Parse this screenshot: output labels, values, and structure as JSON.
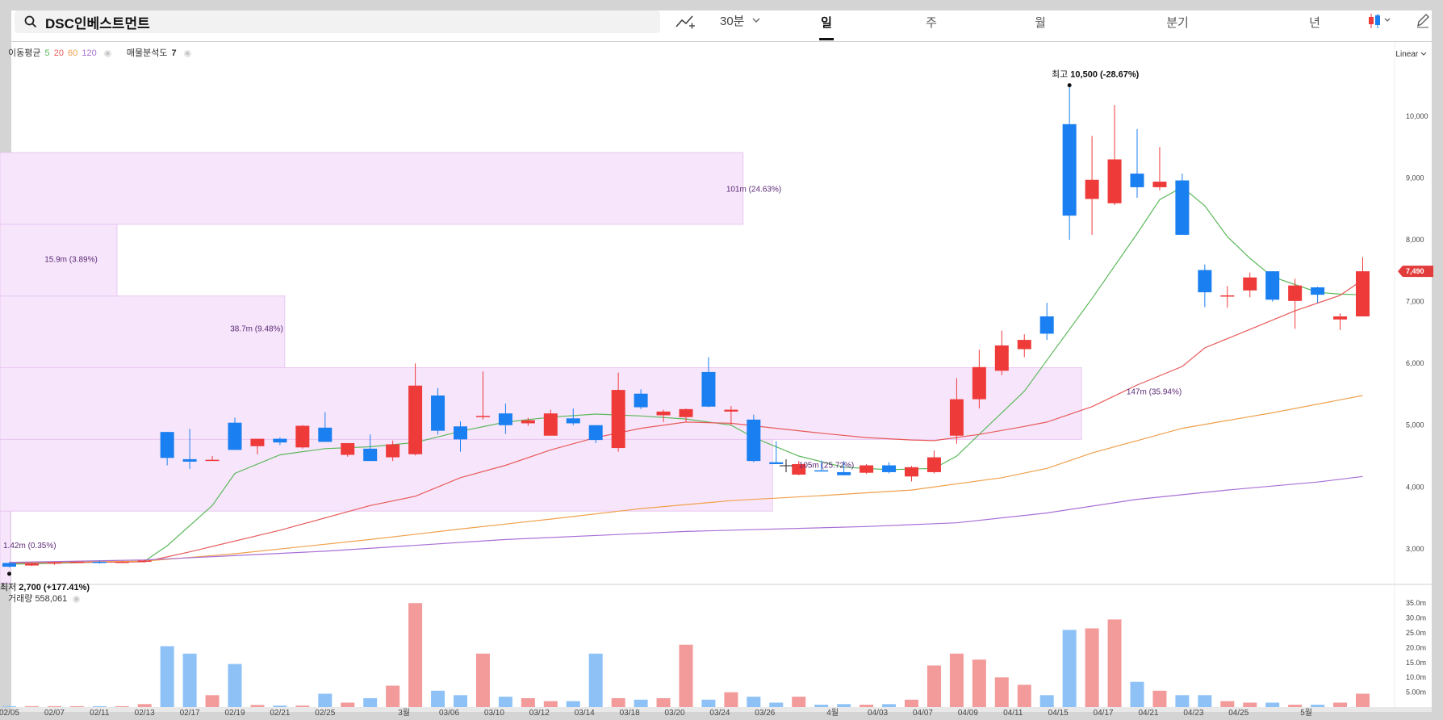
{
  "search": {
    "value": "DSC인베스트먼트"
  },
  "toolbar": {
    "interval_label": "30분",
    "periods": [
      "일",
      "주",
      "월",
      "분기",
      "년"
    ],
    "active_period": "일",
    "icons": [
      "search-icon",
      "drawing-tool-icon",
      "chevron-down-icon",
      "candle-chart-icon",
      "pencil-icon"
    ]
  },
  "legend": {
    "ma_label": "이동평균",
    "ma_periods": [
      "5",
      "20",
      "60",
      "120"
    ],
    "ma_colors": [
      "#5cb85c",
      "#e85a5a",
      "#f0a04b",
      "#a86fd6"
    ],
    "vp_label": "매물분석도",
    "vp_value": "7"
  },
  "volume_legend": {
    "label": "거래량",
    "value": "558,061"
  },
  "scale_label": "Linear",
  "annotations": {
    "high": "최고 10,500 (-28.67%)",
    "high_prefix": "최고",
    "high_value": "10,500 (-28.67%)",
    "low": "최저 2,700 (+177.41%)",
    "low_prefix": "최저",
    "low_value": "2,700 (+177.41%)",
    "last_price": "7,490"
  },
  "colors": {
    "up": "#ef3a3a",
    "down": "#1a7ff0",
    "up_vol": "#f39a9a",
    "down_vol": "#8ec2f7",
    "vp_fill": "#f7e6fb",
    "vp_border": "#e9c7f2"
  },
  "chart_data": {
    "type": "candlestick",
    "price_axis": {
      "ticks": [
        "3,000",
        "4,000",
        "5,000",
        "6,000",
        "7,000",
        "8,000",
        "9,000",
        "10,000"
      ],
      "ylim": [
        2450,
        11200
      ]
    },
    "volume_axis": {
      "ticks": [
        "5.00m",
        "10.0m",
        "15.0m",
        "20.0m",
        "25.0m",
        "30.0m",
        "35.0m"
      ],
      "ylim": [
        0,
        37.5
      ]
    },
    "x_ticks": [
      "02/05",
      "02/07",
      "02/11",
      "02/13",
      "02/17",
      "02/19",
      "02/21",
      "02/25",
      "3월",
      "03/06",
      "03/10",
      "03/12",
      "03/14",
      "03/18",
      "03/20",
      "03/24",
      "03/26",
      "4월",
      "04/03",
      "04/07",
      "04/09",
      "04/11",
      "04/15",
      "04/17",
      "04/21",
      "04/23",
      "04/25",
      "5월"
    ],
    "candles": [
      {
        "o": 2770,
        "h": 2780,
        "l": 2700,
        "c": 2710
      },
      {
        "o": 2730,
        "h": 2780,
        "l": 2720,
        "c": 2760
      },
      {
        "o": 2760,
        "h": 2790,
        "l": 2740,
        "c": 2780
      },
      {
        "o": 2780,
        "h": 2800,
        "l": 2770,
        "c": 2790
      },
      {
        "o": 2790,
        "h": 2810,
        "l": 2760,
        "c": 2770
      },
      {
        "o": 2780,
        "h": 2800,
        "l": 2770,
        "c": 2790
      },
      {
        "o": 2790,
        "h": 2820,
        "l": 2780,
        "c": 2810
      },
      {
        "o": 4890,
        "h": 4890,
        "l": 4350,
        "c": 4470
      },
      {
        "o": 4450,
        "h": 4940,
        "l": 4290,
        "c": 4410
      },
      {
        "o": 4430,
        "h": 4500,
        "l": 4420,
        "c": 4440
      },
      {
        "o": 5040,
        "h": 5120,
        "l": 4600,
        "c": 4600
      },
      {
        "o": 4660,
        "h": 4770,
        "l": 4530,
        "c": 4780
      },
      {
        "o": 4780,
        "h": 4800,
        "l": 4680,
        "c": 4720
      },
      {
        "o": 4640,
        "h": 5000,
        "l": 4620,
        "c": 4990
      },
      {
        "o": 4960,
        "h": 5210,
        "l": 4740,
        "c": 4730
      },
      {
        "o": 4520,
        "h": 4700,
        "l": 4490,
        "c": 4710
      },
      {
        "o": 4620,
        "h": 4850,
        "l": 4440,
        "c": 4420
      },
      {
        "o": 4480,
        "h": 4750,
        "l": 4420,
        "c": 4690
      },
      {
        "o": 4530,
        "h": 6000,
        "l": 4510,
        "c": 5640
      },
      {
        "o": 5480,
        "h": 5600,
        "l": 4850,
        "c": 4910
      },
      {
        "o": 4980,
        "h": 5060,
        "l": 4570,
        "c": 4770
      },
      {
        "o": 5140,
        "h": 5870,
        "l": 5090,
        "c": 5150
      },
      {
        "o": 5190,
        "h": 5350,
        "l": 4860,
        "c": 5000
      },
      {
        "o": 5030,
        "h": 5120,
        "l": 4990,
        "c": 5080
      },
      {
        "o": 4830,
        "h": 5250,
        "l": 4900,
        "c": 5190
      },
      {
        "o": 5110,
        "h": 5270,
        "l": 5000,
        "c": 5030
      },
      {
        "o": 5000,
        "h": 5000,
        "l": 4710,
        "c": 4760
      },
      {
        "o": 4630,
        "h": 5850,
        "l": 4570,
        "c": 5570
      },
      {
        "o": 5510,
        "h": 5580,
        "l": 5260,
        "c": 5290
      },
      {
        "o": 5160,
        "h": 5250,
        "l": 5050,
        "c": 5220
      },
      {
        "o": 5130,
        "h": 5270,
        "l": 5060,
        "c": 5260
      },
      {
        "o": 5860,
        "h": 6100,
        "l": 5290,
        "c": 5300
      },
      {
        "o": 5220,
        "h": 5310,
        "l": 5000,
        "c": 5250
      },
      {
        "o": 5090,
        "h": 5170,
        "l": 4400,
        "c": 4420
      },
      {
        "o": 4400,
        "h": 4740,
        "l": 4370,
        "c": 4370
      },
      {
        "o": 4200,
        "h": 4420,
        "l": 4190,
        "c": 4370
      },
      {
        "o": 4270,
        "h": 4430,
        "l": 4250,
        "c": 4260
      },
      {
        "o": 4240,
        "h": 4420,
        "l": 4190,
        "c": 4190
      },
      {
        "o": 4230,
        "h": 4370,
        "l": 4210,
        "c": 4350
      },
      {
        "o": 4350,
        "h": 4400,
        "l": 4220,
        "c": 4240
      },
      {
        "o": 4170,
        "h": 4340,
        "l": 4090,
        "c": 4320
      },
      {
        "o": 4240,
        "h": 4590,
        "l": 4220,
        "c": 4480
      },
      {
        "o": 4830,
        "h": 5760,
        "l": 4700,
        "c": 5420
      },
      {
        "o": 5420,
        "h": 6220,
        "l": 5270,
        "c": 5940
      },
      {
        "o": 5880,
        "h": 6530,
        "l": 5810,
        "c": 6290
      },
      {
        "o": 6230,
        "h": 6470,
        "l": 6100,
        "c": 6380
      },
      {
        "o": 6760,
        "h": 6980,
        "l": 6380,
        "c": 6480
      },
      {
        "o": 9870,
        "h": 10500,
        "l": 8000,
        "c": 8390
      },
      {
        "o": 8660,
        "h": 9680,
        "l": 8080,
        "c": 8970
      },
      {
        "o": 8590,
        "h": 10180,
        "l": 8560,
        "c": 9300
      },
      {
        "o": 9070,
        "h": 9790,
        "l": 8680,
        "c": 8850
      },
      {
        "o": 8850,
        "h": 9500,
        "l": 8800,
        "c": 8940
      },
      {
        "o": 8960,
        "h": 9070,
        "l": 8090,
        "c": 8080
      },
      {
        "o": 7510,
        "h": 7600,
        "l": 6910,
        "c": 7150
      },
      {
        "o": 7080,
        "h": 7250,
        "l": 6900,
        "c": 7100
      },
      {
        "o": 7180,
        "h": 7470,
        "l": 7070,
        "c": 7390
      },
      {
        "o": 7490,
        "h": 7490,
        "l": 7000,
        "c": 7030
      },
      {
        "o": 7010,
        "h": 7370,
        "l": 6560,
        "c": 7260
      },
      {
        "o": 7230,
        "h": 7240,
        "l": 6980,
        "c": 7110
      },
      {
        "o": 6710,
        "h": 6810,
        "l": 6540,
        "c": 6760
      },
      {
        "o": 6760,
        "h": 7720,
        "l": 6760,
        "c": 7490
      }
    ],
    "volume": [
      0.3,
      0.3,
      0.3,
      0.3,
      0.3,
      0.3,
      1.0,
      20.5,
      18.0,
      4.0,
      14.5,
      0.7,
      0.5,
      0.5,
      4.5,
      1.5,
      3.0,
      7.2,
      35.0,
      5.5,
      4.0,
      18.0,
      3.5,
      3.0,
      2.0,
      2.0,
      18.0,
      3.0,
      2.5,
      3.0,
      21.0,
      2.5,
      5.0,
      3.5,
      1.5,
      3.5,
      0.8,
      1.0,
      0.8,
      1.0,
      2.5,
      14.0,
      18.0,
      16.0,
      10.0,
      7.5,
      4.0,
      26.0,
      26.5,
      29.5,
      8.5,
      5.5,
      4.0,
      4.0,
      2.0,
      1.5,
      1.5,
      0.8,
      0.8,
      1.5,
      4.5
    ],
    "moving_averages": [
      {
        "name": "5",
        "values": [
          [
            0,
            2750
          ],
          [
            6,
            2800
          ],
          [
            7,
            3050
          ],
          [
            9,
            3700
          ],
          [
            10,
            4220
          ],
          [
            12,
            4520
          ],
          [
            14,
            4620
          ],
          [
            16,
            4650
          ],
          [
            18,
            4720
          ],
          [
            20,
            4900
          ],
          [
            22,
            5050
          ],
          [
            24,
            5130
          ],
          [
            26,
            5180
          ],
          [
            28,
            5150
          ],
          [
            30,
            5100
          ],
          [
            32,
            5000
          ],
          [
            33,
            4800
          ],
          [
            35,
            4500
          ],
          [
            37,
            4320
          ],
          [
            39,
            4280
          ],
          [
            41,
            4300
          ],
          [
            42,
            4500
          ],
          [
            43,
            4850
          ],
          [
            45,
            5550
          ],
          [
            46,
            6050
          ],
          [
            48,
            7050
          ],
          [
            50,
            8100
          ],
          [
            51,
            8650
          ],
          [
            52,
            8850
          ],
          [
            53,
            8550
          ],
          [
            54,
            8050
          ],
          [
            55,
            7700
          ],
          [
            56,
            7400
          ],
          [
            58,
            7150
          ],
          [
            59,
            7120
          ],
          [
            60,
            7110
          ]
        ]
      },
      {
        "name": "20",
        "values": [
          [
            0,
            2770
          ],
          [
            6,
            2790
          ],
          [
            8,
            2950
          ],
          [
            12,
            3300
          ],
          [
            16,
            3700
          ],
          [
            18,
            3850
          ],
          [
            20,
            4150
          ],
          [
            22,
            4350
          ],
          [
            24,
            4600
          ],
          [
            26,
            4800
          ],
          [
            28,
            4950
          ],
          [
            30,
            5050
          ],
          [
            32,
            5030
          ],
          [
            34,
            4950
          ],
          [
            36,
            4870
          ],
          [
            38,
            4800
          ],
          [
            40,
            4760
          ],
          [
            41,
            4750
          ],
          [
            43,
            4850
          ],
          [
            45,
            4980
          ],
          [
            46,
            5050
          ],
          [
            48,
            5300
          ],
          [
            50,
            5650
          ],
          [
            52,
            5950
          ],
          [
            53,
            6250
          ],
          [
            55,
            6550
          ],
          [
            57,
            6850
          ],
          [
            59,
            7100
          ],
          [
            60,
            7350
          ]
        ]
      },
      {
        "name": "60",
        "values": [
          [
            0,
            2780
          ],
          [
            6,
            2800
          ],
          [
            10,
            2920
          ],
          [
            16,
            3150
          ],
          [
            20,
            3320
          ],
          [
            24,
            3480
          ],
          [
            28,
            3650
          ],
          [
            32,
            3780
          ],
          [
            36,
            3860
          ],
          [
            40,
            3950
          ],
          [
            44,
            4150
          ],
          [
            46,
            4300
          ],
          [
            48,
            4550
          ],
          [
            50,
            4750
          ],
          [
            52,
            4950
          ],
          [
            56,
            5200
          ],
          [
            60,
            5480
          ]
        ]
      },
      {
        "name": "120",
        "values": [
          [
            0,
            2780
          ],
          [
            6,
            2820
          ],
          [
            14,
            2960
          ],
          [
            22,
            3150
          ],
          [
            30,
            3280
          ],
          [
            38,
            3360
          ],
          [
            42,
            3420
          ],
          [
            46,
            3580
          ],
          [
            50,
            3800
          ],
          [
            54,
            3950
          ],
          [
            58,
            4080
          ],
          [
            60,
            4170
          ]
        ]
      }
    ],
    "volume_profile": [
      {
        "price_low": 2450,
        "price_high": 3610,
        "label": "1.42m (0.35%)",
        "volume": 1.42,
        "pct": 0.35
      },
      {
        "price_low": 3610,
        "price_high": 4770,
        "label": "105m (25.72%)",
        "volume": 105,
        "pct": 25.72
      },
      {
        "price_low": 4770,
        "price_high": 5930,
        "label": "147m (35.94%)",
        "volume": 147,
        "pct": 35.94
      },
      {
        "price_low": 5930,
        "price_high": 7090,
        "label": "38.7m (9.48%)",
        "volume": 38.7,
        "pct": 9.48
      },
      {
        "price_low": 7090,
        "price_high": 8250,
        "label": "15.9m (3.89%)",
        "volume": 15.9,
        "pct": 3.89
      },
      {
        "price_low": 8250,
        "price_high": 9410,
        "label": "101m (24.63%)",
        "volume": 101,
        "pct": 24.63
      },
      {
        "price_low": 9410,
        "price_high": 10570,
        "label": "0",
        "volume": 0,
        "pct": 0
      }
    ],
    "title": "",
    "xlabel": "",
    "ylabel": ""
  }
}
